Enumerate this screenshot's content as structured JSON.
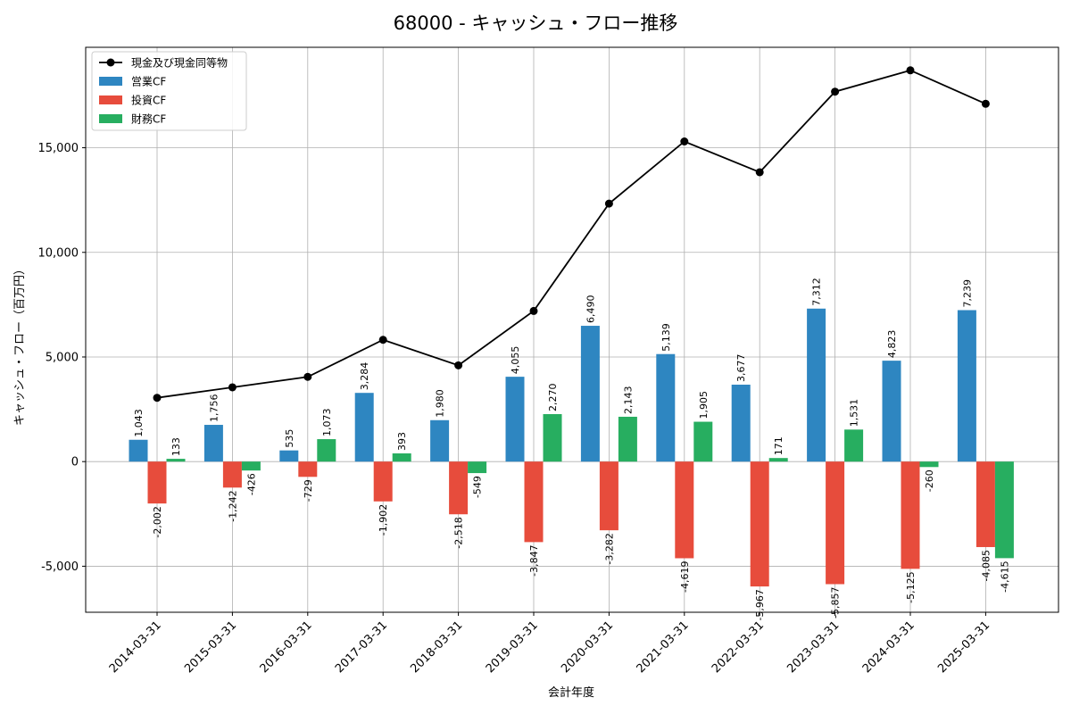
{
  "chart_data": {
    "type": "bar",
    "title": "68000 - キャッシュ・フロー推移",
    "xlabel": "会計年度",
    "ylabel": "キャッシュ・フロー（百万円）",
    "ylim": [
      -7200,
      19800
    ],
    "y_ticks": [
      -5000,
      0,
      5000,
      10000,
      15000
    ],
    "y_tick_labels": [
      "-5,000",
      "0",
      "5,000",
      "10,000",
      "15,000"
    ],
    "grid": true,
    "legend_position": "top-left",
    "categories": [
      "2014-03-31",
      "2015-03-31",
      "2016-03-31",
      "2017-03-31",
      "2018-03-31",
      "2019-03-31",
      "2020-03-31",
      "2021-03-31",
      "2022-03-31",
      "2023-03-31",
      "2024-03-31",
      "2025-03-31"
    ],
    "line_series": {
      "name": "現金及び現金同等物",
      "color": "#000000",
      "values": [
        3050,
        3550,
        4050,
        5820,
        4600,
        7200,
        12330,
        15300,
        13830,
        17680,
        18700,
        17100
      ]
    },
    "bar_series": [
      {
        "name": "営業CF",
        "color": "#2e86c1",
        "values": [
          1043,
          1756,
          535,
          3284,
          1980,
          4055,
          6490,
          5139,
          3677,
          7312,
          4823,
          7239
        ],
        "labels": [
          "1,043",
          "1,756",
          "535",
          "3,284",
          "1,980",
          "4,055",
          "6,490",
          "5,139",
          "3,677",
          "7,312",
          "4,823",
          "7,239"
        ]
      },
      {
        "name": "投資CF",
        "color": "#e74c3c",
        "values": [
          -2002,
          -1242,
          -729,
          -1902,
          -2518,
          -3847,
          -3282,
          -4619,
          -5967,
          -5857,
          -5125,
          -4085
        ],
        "labels": [
          "-2,002",
          "-1,242",
          "-729",
          "-1,902",
          "-2,518",
          "-3,847",
          "-3,282",
          "-4,619",
          "-5,967",
          "-5,857",
          "-5,125",
          "-4,085"
        ]
      },
      {
        "name": "財務CF",
        "color": "#27ae60",
        "values": [
          133,
          -426,
          1073,
          393,
          -549,
          2270,
          2143,
          1905,
          171,
          1531,
          -260,
          -4615
        ],
        "labels": [
          "133",
          "-426",
          "1,073",
          "393",
          "-549",
          "2,270",
          "2,143",
          "1,905",
          "171",
          "1,531",
          "-260",
          "-4,615"
        ]
      }
    ]
  }
}
